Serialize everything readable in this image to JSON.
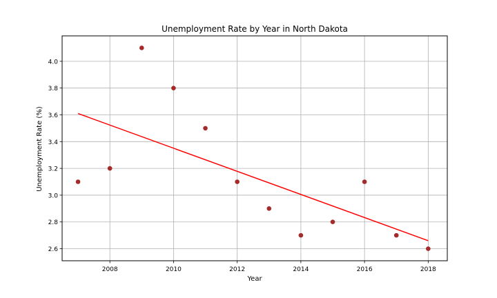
{
  "chart_data": {
    "type": "scatter",
    "title": "Unemployment Rate by Year in North Dakota",
    "xlabel": "Year",
    "ylabel": "Unemployment Rate (%)",
    "xlim": [
      2006.5,
      2018.6
    ],
    "ylim": [
      2.51,
      4.19
    ],
    "xticks": [
      2008,
      2010,
      2012,
      2014,
      2016,
      2018
    ],
    "yticks": [
      2.6,
      2.8,
      3.0,
      3.2,
      3.4,
      3.6,
      3.8,
      4.0
    ],
    "ytick_labels": [
      "2.6",
      "2.8",
      "3.0",
      "3.2",
      "3.4",
      "3.6",
      "3.8",
      "4.0"
    ],
    "grid": true,
    "points": {
      "x": [
        2007,
        2008,
        2009,
        2010,
        2011,
        2012,
        2013,
        2014,
        2015,
        2016,
        2017,
        2018
      ],
      "y": [
        3.1,
        3.2,
        4.1,
        3.8,
        3.5,
        3.1,
        2.9,
        2.7,
        2.8,
        3.1,
        2.7,
        2.6
      ],
      "color": "#a52a2a"
    },
    "trendline": {
      "x": [
        2007,
        2018
      ],
      "y": [
        3.61,
        2.66
      ],
      "color": "#ff0000"
    }
  }
}
